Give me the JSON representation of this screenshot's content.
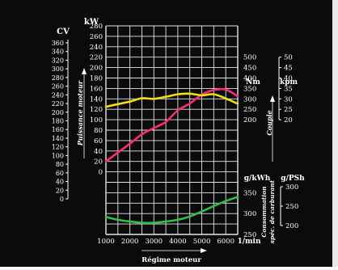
{
  "chart_data": {
    "type": "line",
    "x": [
      1000,
      1500,
      2000,
      2500,
      3000,
      3500,
      4000,
      4500,
      5000,
      5500,
      6000,
      6500
    ],
    "x_ticks": [
      "1000",
      "2000",
      "3000",
      "4000",
      "5000",
      "6000"
    ],
    "x_unit": "1/min",
    "xlabel": "Régime moteur",
    "xlim": [
      1000,
      6500
    ],
    "grid": true,
    "axes": {
      "cv": {
        "unit": "CV",
        "label": "Puissance moteur",
        "ticks": [
          "0",
          "20",
          "40",
          "60",
          "80",
          "100",
          "120",
          "140",
          "160",
          "180",
          "200",
          "220",
          "240",
          "260",
          "280",
          "300",
          "320",
          "340",
          "360"
        ]
      },
      "kw": {
        "unit": "kW",
        "ticks": [
          "0",
          "20",
          "40",
          "60",
          "80",
          "100",
          "120",
          "140",
          "160",
          "180",
          "200",
          "220",
          "240",
          "260",
          "280"
        ],
        "range": [
          0,
          280
        ]
      },
      "nm": {
        "unit": "Nm",
        "label": "Couple",
        "ticks": [
          "200",
          "250",
          "300",
          "350",
          "400",
          "450",
          "500"
        ],
        "range": [
          200,
          500
        ]
      },
      "kpm": {
        "unit": "kpm",
        "ticks": [
          "20",
          "25",
          "30",
          "35",
          "40",
          "45",
          "50"
        ]
      },
      "gkwh": {
        "unit": "g/kWh",
        "label": "Consommation",
        "ticks": [
          "250",
          "300",
          "350"
        ],
        "range": [
          250,
          350
        ]
      },
      "gpsh": {
        "unit": "g/PSh",
        "label": "spéc. de carburant",
        "ticks": [
          "200",
          "250",
          "300"
        ]
      }
    },
    "series": [
      {
        "axis": "kw",
        "color": "#ff2a7a",
        "values": [
          20,
          37,
          54,
          72,
          84,
          96,
          118,
          131,
          148,
          157,
          158,
          145
        ]
      },
      {
        "axis": "nm",
        "color": "#f0e010",
        "values": [
          262,
          275,
          287,
          303,
          300,
          310,
          322,
          325,
          317,
          322,
          302,
          277
        ]
      },
      {
        "axis": "gkwh",
        "color": "#2fc04a",
        "values": [
          292,
          285,
          281,
          278,
          278,
          281,
          285,
          293,
          305,
          318,
          330,
          340
        ]
      }
    ]
  }
}
